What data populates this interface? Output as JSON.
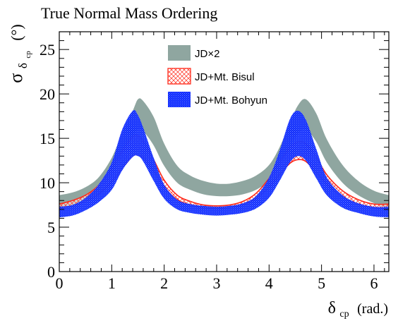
{
  "title": "True Normal Mass Ordering",
  "chart_data": {
    "type": "area",
    "title": "True Normal Mass Ordering",
    "ylabel_main": "σ",
    "ylabel_sub": "δ",
    "ylabel_subsub": "cp",
    "ylabel_unit": "(°)",
    "xlabel_main": "δ",
    "xlabel_sub": "cp",
    "xlabel_unit": "(rad.)",
    "xlim": [
      0,
      6.2832
    ],
    "ylim": [
      0,
      27
    ],
    "xticks": [
      0,
      1,
      2,
      3,
      4,
      5,
      6
    ],
    "xtick_labels": [
      "0",
      "1",
      "2",
      "3",
      "4",
      "5",
      "6"
    ],
    "yticks": [
      0,
      5,
      10,
      15,
      20,
      25
    ],
    "ytick_labels": [
      "0",
      "5",
      "10",
      "15",
      "20",
      "25"
    ],
    "grid": false,
    "legend_position": "top-center",
    "x": [
      0,
      0.25,
      0.5,
      0.75,
      1.0,
      1.2,
      1.4,
      1.5,
      1.6,
      1.8,
      2.0,
      2.25,
      2.5,
      2.75,
      3.0,
      3.25,
      3.5,
      3.75,
      4.0,
      4.2,
      4.4,
      4.55,
      4.7,
      4.9,
      5.1,
      5.4,
      5.7,
      6.0,
      6.2832
    ],
    "series": [
      {
        "name": "JD×2",
        "color": "#8fa6a0",
        "style": "solid",
        "lower": [
          7.1,
          7.4,
          8.0,
          9.0,
          10.8,
          13.0,
          15.2,
          16.0,
          15.8,
          14.2,
          11.9,
          10.0,
          9.2,
          8.7,
          8.5,
          8.5,
          8.7,
          9.2,
          10.2,
          11.8,
          14.0,
          15.5,
          16.0,
          14.6,
          12.3,
          10.0,
          8.6,
          7.7,
          7.1
        ],
        "upper": [
          8.6,
          8.9,
          9.5,
          10.6,
          12.8,
          15.6,
          18.1,
          19.4,
          19.2,
          17.4,
          14.4,
          11.9,
          10.8,
          10.2,
          9.9,
          9.9,
          10.2,
          10.8,
          12.0,
          14.0,
          16.8,
          18.7,
          19.4,
          17.8,
          14.9,
          12.0,
          10.2,
          9.1,
          8.6
        ]
      },
      {
        "name": "JD+Mt. Bisul",
        "color": "#ff2a1a",
        "style": "hatched",
        "lower": [
          7.1,
          7.4,
          7.9,
          8.7,
          10.1,
          11.6,
          13.0,
          13.1,
          12.8,
          11.3,
          9.5,
          8.1,
          7.5,
          7.2,
          7.1,
          7.2,
          7.5,
          8.2,
          9.5,
          10.9,
          12.2,
          12.6,
          12.4,
          11.2,
          9.8,
          8.4,
          7.6,
          7.2,
          7.1
        ],
        "upper": [
          7.6,
          8.0,
          8.6,
          9.7,
          11.6,
          13.6,
          15.2,
          15.3,
          14.7,
          12.6,
          10.3,
          8.6,
          7.9,
          7.5,
          7.4,
          7.5,
          7.9,
          8.8,
          10.5,
          12.3,
          14.0,
          14.6,
          14.4,
          12.9,
          10.9,
          9.1,
          8.1,
          7.6,
          7.6
        ]
      },
      {
        "name": "JD+Mt. Bohyun",
        "color": "#0033ff",
        "style": "dense",
        "lower": [
          6.1,
          6.3,
          6.9,
          7.8,
          9.2,
          11.4,
          12.9,
          13.0,
          12.4,
          10.2,
          8.2,
          7.0,
          6.6,
          6.4,
          6.3,
          6.4,
          6.6,
          7.1,
          8.3,
          10.2,
          12.3,
          13.0,
          12.5,
          10.5,
          8.6,
          7.2,
          6.6,
          6.2,
          6.1
        ],
        "upper": [
          7.3,
          7.5,
          8.3,
          9.8,
          12.3,
          16.0,
          18.1,
          17.6,
          16.2,
          12.8,
          9.8,
          8.1,
          7.6,
          7.4,
          7.3,
          7.4,
          7.7,
          8.5,
          10.6,
          13.6,
          17.2,
          18.1,
          17.1,
          13.8,
          10.6,
          8.6,
          7.7,
          7.3,
          7.3
        ]
      }
    ]
  }
}
